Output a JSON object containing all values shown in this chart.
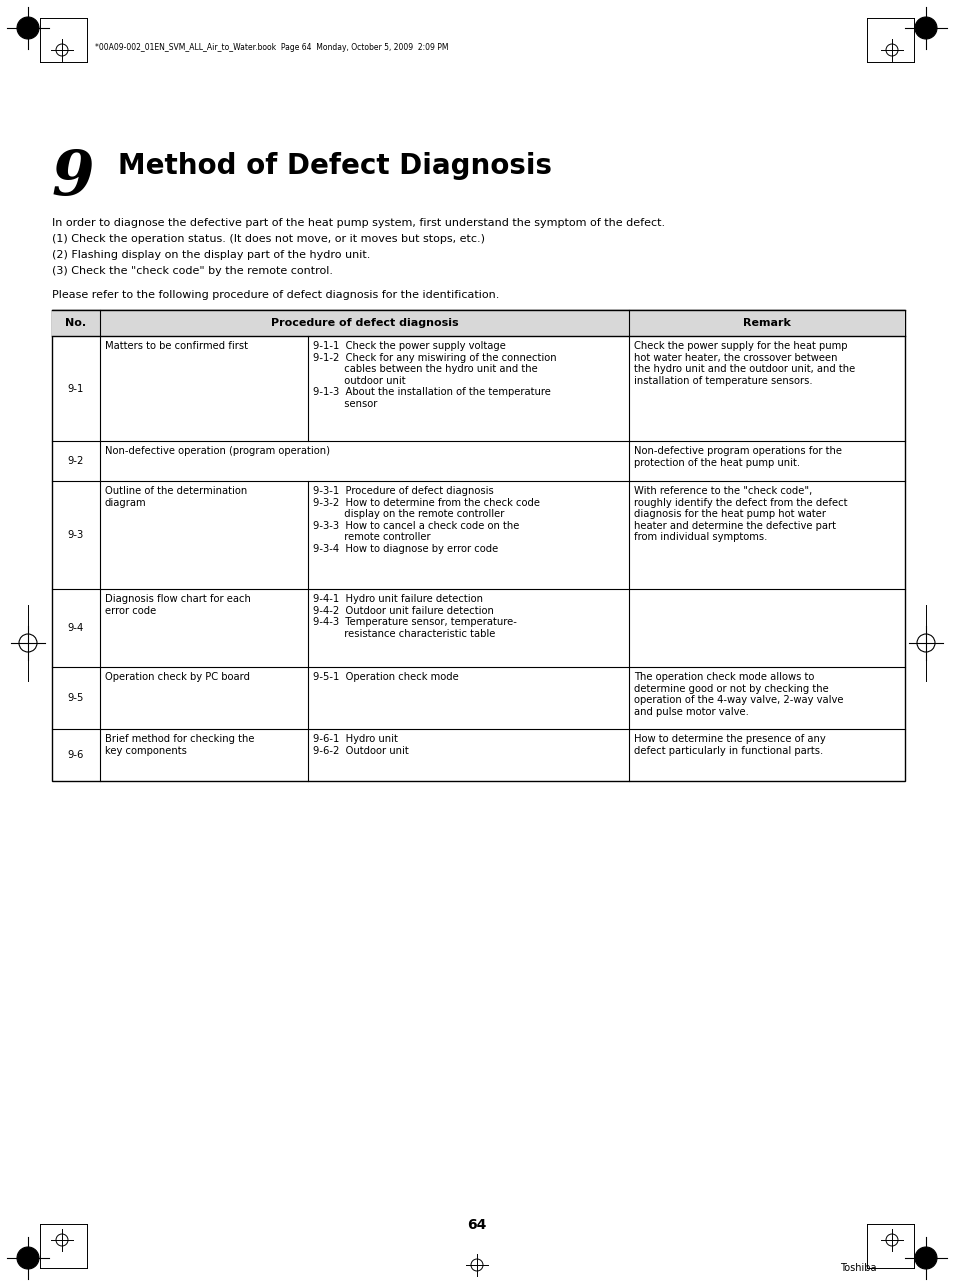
{
  "background_color": "#ffffff",
  "page_number": "64",
  "header_text": "*00A09-002_01EN_SVM_ALL_Air_to_Water.book  Page 64  Monday, October 5, 2009  2:09 PM",
  "chapter_number": "9",
  "chapter_title": "Method of Defect Diagnosis",
  "intro_lines": [
    "In order to diagnose the defective part of the heat pump system, first understand the symptom of the defect.",
    "(1) Check the operation status. (It does not move, or it moves but stops, etc.)",
    "(2) Flashing display on the display part of the hydro unit.",
    "(3) Check the \"check code\" by the remote control."
  ],
  "table_intro": "Please refer to the following procedure of defect diagnosis for the identification.",
  "table_headers": [
    "No.",
    "Procedure of defect diagnosis",
    "Remark"
  ],
  "rows": [
    {
      "no": "9-1",
      "col2a": "Matters to be confirmed first",
      "col2b": "9-1-1  Check the power supply voltage\n9-1-2  Check for any miswiring of the connection\n          cables between the hydro unit and the\n          outdoor unit\n9-1-3  About the installation of the temperature\n          sensor",
      "remark": "Check the power supply for the heat pump\nhot water heater, the crossover between\nthe hydro unit and the outdoor unit, and the\ninstallation of temperature sensors."
    },
    {
      "no": "9-2",
      "col2a": "Non-defective operation (program operation)",
      "col2b": "",
      "remark": "Non-defective program operations for the\nprotection of the heat pump unit."
    },
    {
      "no": "9-3",
      "col2a": "Outline of the determination\ndiagram",
      "col2b": "9-3-1  Procedure of defect diagnosis\n9-3-2  How to determine from the check code\n          display on the remote controller\n9-3-3  How to cancel a check code on the\n          remote controller\n9-3-4  How to diagnose by error code",
      "remark": "With reference to the \"check code\",\nroughly identify the defect from the defect\ndiagnosis for the heat pump hot water\nheater and determine the defective part\nfrom individual symptoms."
    },
    {
      "no": "9-4",
      "col2a": "Diagnosis flow chart for each\nerror code",
      "col2b": "9-4-1  Hydro unit failure detection\n9-4-2  Outdoor unit failure detection\n9-4-3  Temperature sensor, temperature-\n          resistance characteristic table",
      "remark": ""
    },
    {
      "no": "9-5",
      "col2a": "Operation check by PC board",
      "col2b": "9-5-1  Operation check mode",
      "remark": "The operation check mode allows to\ndetermine good or not by checking the\noperation of the 4-way valve, 2-way valve\nand pulse motor valve."
    },
    {
      "no": "9-6",
      "col2a": "Brief method for checking the\nkey components",
      "col2b": "9-6-1  Hydro unit\n9-6-2  Outdoor unit",
      "remark": "How to determine the presence of any\ndefect particularly in functional parts."
    }
  ],
  "footer_brand": "Toshiba"
}
